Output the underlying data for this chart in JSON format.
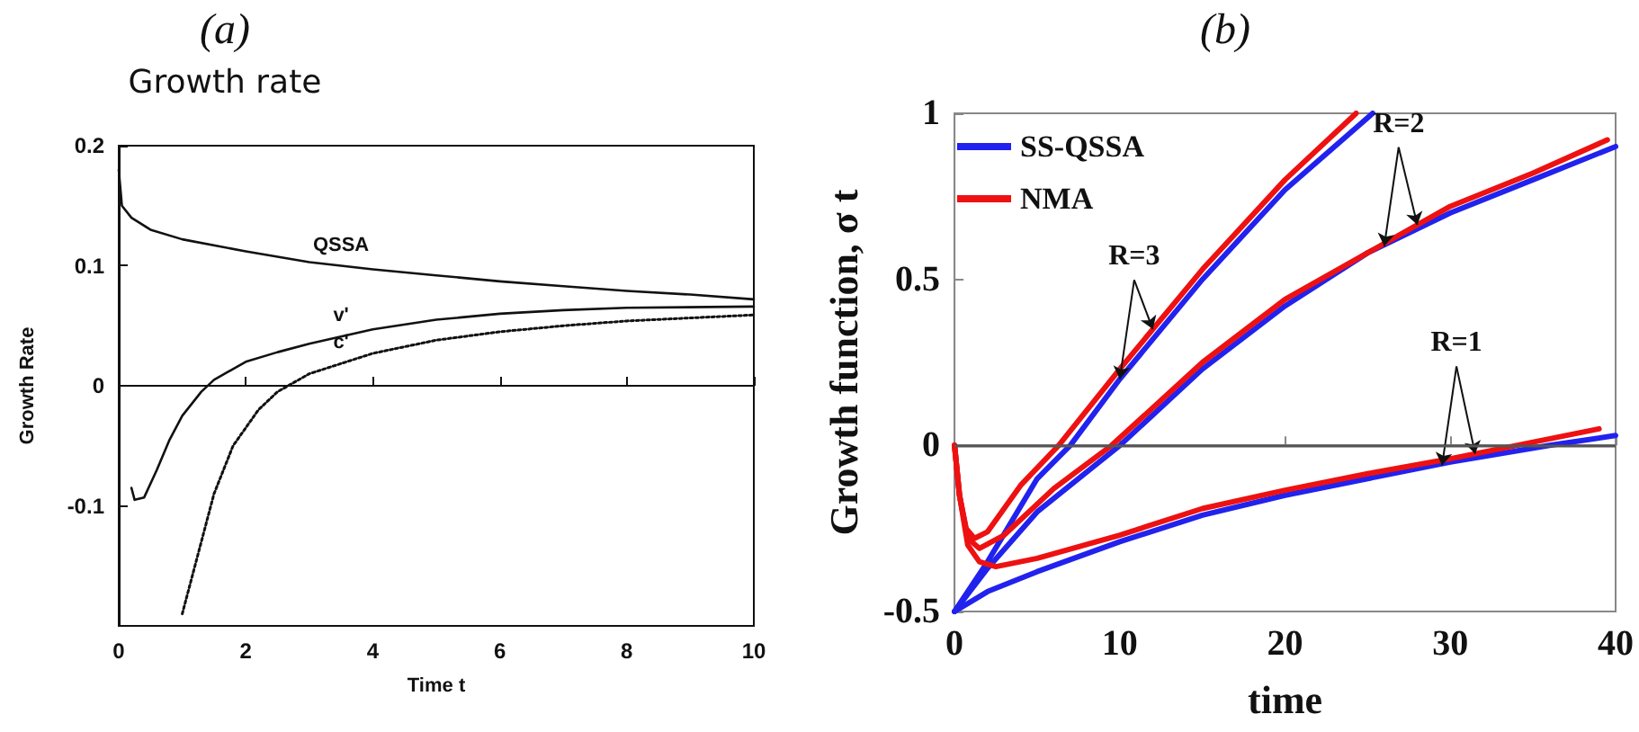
{
  "chart_data": [
    {
      "type": "line",
      "title": "(a)",
      "subtitle": "Growth rate",
      "xlabel": "Time t",
      "ylabel": "Growth Rate",
      "xlim": [
        0,
        10
      ],
      "ylim": [
        -0.2,
        0.2
      ],
      "xticks": [
        0,
        2,
        4,
        6,
        8,
        10
      ],
      "yticks": [
        -0.1,
        0,
        0.1,
        0.2
      ],
      "series": [
        {
          "name": "QSSA",
          "color": "#111111",
          "x": [
            0,
            0.05,
            0.2,
            0.5,
            1,
            2,
            3,
            4,
            5,
            6,
            7,
            8,
            9,
            10
          ],
          "values": [
            0.18,
            0.15,
            0.14,
            0.13,
            0.122,
            0.112,
            0.103,
            0.097,
            0.092,
            0.087,
            0.083,
            0.079,
            0.076,
            0.072
          ]
        },
        {
          "name": "v'",
          "color": "#111111",
          "x": [
            0.2,
            0.25,
            0.4,
            0.6,
            0.8,
            1,
            1.3,
            1.5,
            2,
            2.5,
            3,
            4,
            5,
            6,
            7,
            8,
            10
          ],
          "values": [
            -0.085,
            -0.095,
            -0.093,
            -0.07,
            -0.045,
            -0.025,
            -0.005,
            0.005,
            0.02,
            0.028,
            0.035,
            0.047,
            0.055,
            0.06,
            0.063,
            0.065,
            0.066
          ]
        },
        {
          "name": "c'",
          "color": "#111111",
          "line_style": "dotted",
          "x": [
            1,
            1.2,
            1.5,
            1.8,
            2.2,
            2.5,
            3,
            4,
            5,
            6,
            7,
            8,
            10
          ],
          "values": [
            -0.19,
            -0.15,
            -0.09,
            -0.05,
            -0.02,
            -0.005,
            0.01,
            0.027,
            0.038,
            0.045,
            0.05,
            0.054,
            0.059
          ]
        }
      ]
    },
    {
      "type": "line",
      "title": "(b)",
      "xlabel": "time",
      "ylabel": "Growth function, σ t",
      "xlim": [
        0,
        40
      ],
      "ylim": [
        -0.5,
        1
      ],
      "xticks": [
        0,
        10,
        20,
        30,
        40
      ],
      "yticks": [
        -0.5,
        0,
        0.5,
        1
      ],
      "legend": "top left",
      "ref_lines": [
        {
          "axis": "y",
          "value": 0,
          "color": "#555555"
        }
      ],
      "annotations": [
        {
          "text": "R=1",
          "x": 29.5,
          "y": -0.06
        },
        {
          "text": "R=2",
          "x": 26,
          "y": 0.6
        },
        {
          "text": "R=3",
          "x": 10,
          "y": 0.2
        }
      ],
      "series": [
        {
          "name": "SS-QSSA",
          "color": "#2222ee",
          "x": [
            0,
            2,
            5,
            10,
            15,
            20,
            25,
            30,
            36,
            40
          ],
          "values": [
            -0.5,
            -0.44,
            -0.38,
            -0.29,
            -0.21,
            -0.15,
            -0.1,
            -0.05,
            0,
            0.03
          ]
        },
        {
          "color": "#2222ee",
          "x": [
            0,
            2,
            5,
            10,
            15,
            20,
            25,
            30,
            35,
            40
          ],
          "values": [
            -0.5,
            -0.37,
            -0.2,
            0,
            0.23,
            0.42,
            0.58,
            0.7,
            0.8,
            0.9
          ]
        },
        {
          "color": "#2222ee",
          "x": [
            0,
            2,
            5,
            7,
            10,
            15,
            20,
            25.3
          ],
          "values": [
            -0.5,
            -0.35,
            -0.1,
            0,
            0.2,
            0.5,
            0.77,
            1
          ]
        },
        {
          "name": "NMA",
          "color": "#ee1111",
          "x": [
            0,
            0.3,
            0.8,
            1.5,
            2.5,
            5,
            10,
            15,
            20,
            25,
            30,
            34,
            39
          ],
          "values": [
            0,
            -0.15,
            -0.3,
            -0.35,
            -0.365,
            -0.34,
            -0.27,
            -0.19,
            -0.135,
            -0.085,
            -0.04,
            0,
            0.05
          ]
        },
        {
          "color": "#ee1111",
          "x": [
            0,
            0.3,
            0.8,
            1.5,
            3,
            6,
            9.5,
            15,
            20,
            25,
            30,
            35,
            39.5
          ],
          "values": [
            0,
            -0.15,
            -0.28,
            -0.31,
            -0.27,
            -0.13,
            0,
            0.25,
            0.44,
            0.58,
            0.72,
            0.82,
            0.92
          ]
        },
        {
          "color": "#ee1111",
          "x": [
            0,
            0.3,
            0.7,
            1.2,
            2,
            4,
            6.3,
            10,
            15,
            20,
            24.3
          ],
          "values": [
            0,
            -0.15,
            -0.25,
            -0.28,
            -0.26,
            -0.12,
            0,
            0.23,
            0.53,
            0.8,
            1
          ]
        }
      ]
    }
  ]
}
